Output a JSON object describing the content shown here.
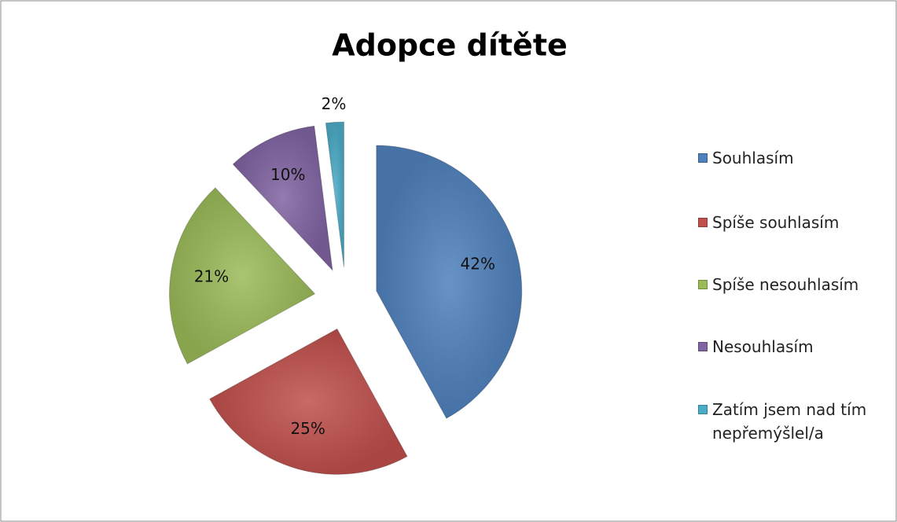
{
  "chart_data": {
    "type": "pie",
    "title": "Adopce dítěte",
    "categories": [
      "Souhlasím",
      "Spíše souhlasím",
      "Spíše nesouhlasím",
      "Nesouhlasím",
      "Zatím jsem nad tím nepřemýšlel/a"
    ],
    "values": [
      42,
      25,
      21,
      10,
      2
    ],
    "value_labels": [
      "42%",
      "25%",
      "21%",
      "10%",
      "2%"
    ],
    "colors": [
      "#4f81bd",
      "#c0504d",
      "#9bbb59",
      "#8064a2",
      "#4bacc6"
    ],
    "legend": "right"
  }
}
